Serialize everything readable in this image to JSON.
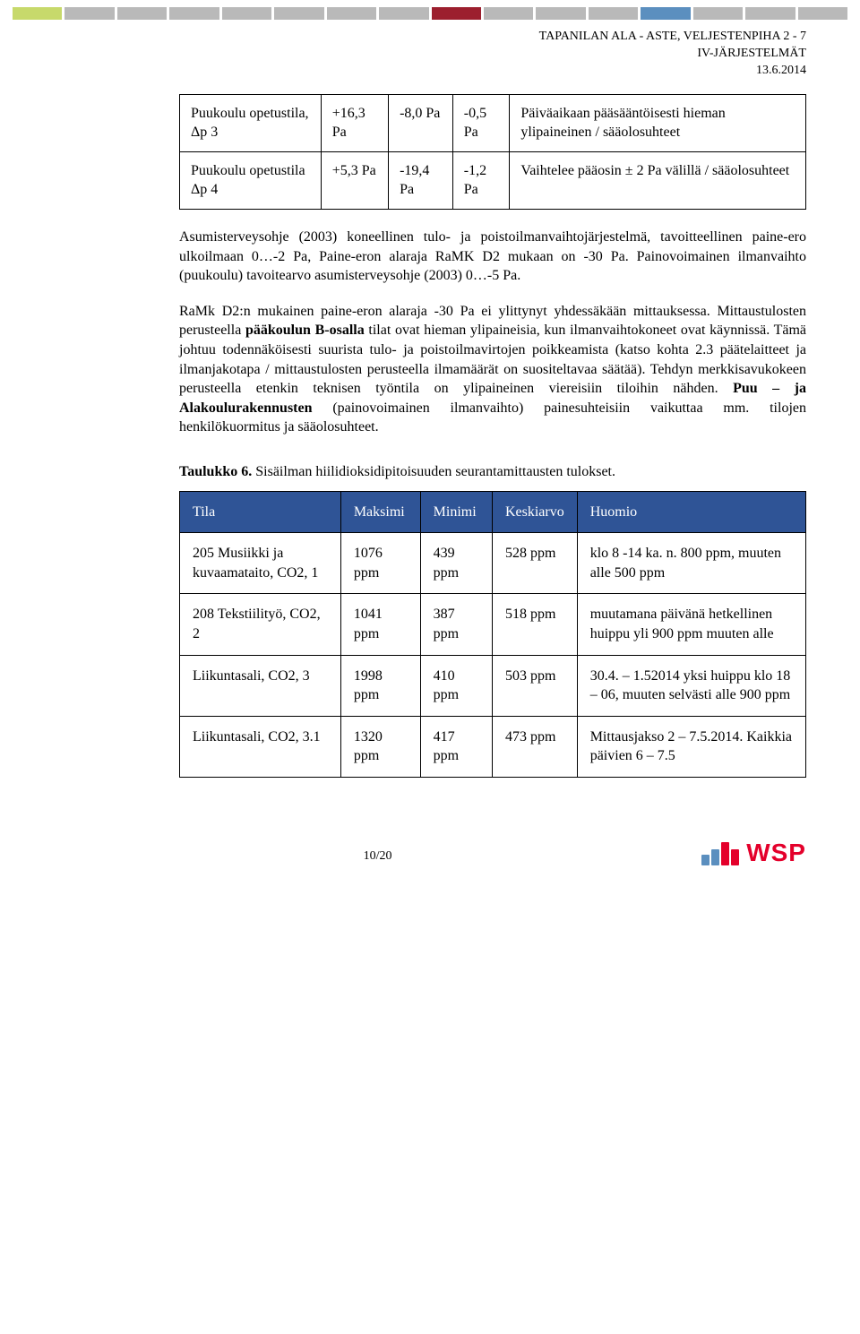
{
  "topbar_colors": [
    "#c7d96b",
    "#b9b9b9",
    "#b9b9b9",
    "#b9b9b9",
    "#b9b9b9",
    "#b9b9b9",
    "#b9b9b9",
    "#b9b9b9",
    "#9c1f2e",
    "#b9b9b9",
    "#b9b9b9",
    "#b9b9b9",
    "#5b8fbf",
    "#b9b9b9",
    "#b9b9b9",
    "#b9b9b9"
  ],
  "header": {
    "line1": "TAPANILAN ALA - ASTE, VELJESTENPIHA 2 - 7",
    "line2": "IV-JÄRJESTELMÄT",
    "line3": "13.6.2014"
  },
  "table1": {
    "r1": {
      "c1": "Puukoulu opetustila, Δp 3",
      "c2": "+16,3 Pa",
      "c3": "-8,0 Pa",
      "c4": "-0,5 Pa",
      "c5": "Päiväaikaan pääsääntöisesti hieman ylipaineinen / sääolosuhteet"
    },
    "r2": {
      "c1": "Puukoulu opetustila Δp 4",
      "c2": "+5,3 Pa",
      "c3": "-19,4 Pa",
      "c4": "-1,2 Pa",
      "c5": "Vaihtelee pääosin ± 2 Pa välillä / sääolosuhteet"
    }
  },
  "para1": "Asumisterveysohje (2003) koneellinen tulo- ja poistoilmanvaihtojärjestelmä, tavoitteellinen paine-ero ulkoilmaan 0…-2 Pa, Paine-eron alaraja RaMK D2 mukaan on -30 Pa. Painovoimainen ilmanvaihto (puukoulu) tavoitearvo asumisterveysohje (2003) 0…-5 Pa.",
  "para2": {
    "t1": "RaMk D2:n mukainen paine-eron alaraja -30 Pa ei ylittynyt yhdessäkään mittauksessa. Mittaustulosten perusteella ",
    "b1": "pääkoulun B-osalla",
    "t2": " tilat ovat hieman ylipaineisia, kun ilmanvaihtokoneet ovat käynnissä. Tämä johtuu todennäköisesti suurista tulo- ja poistoilmavirtojen poikkeamista (katso kohta 2.3 päätelaitteet ja ilmanjakotapa / mittaustulosten perusteella ilmamäärät on suositeltavaa säätää). Tehdyn merkkisavukokeen perusteella etenkin teknisen työntila on ylipaineinen viereisiin tiloihin nähden. ",
    "b2": "Puu – ja Alakoulurakennusten",
    "t3": " (painovoimainen ilmanvaihto) painesuhteisiin vaikuttaa mm. tilojen henkilökuormitus ja sääolosuhteet."
  },
  "caption": {
    "b": "Taulukko 6.",
    "t": " Sisäilman hiilidioksidipitoisuuden seurantamittausten tulokset."
  },
  "table2": {
    "head": {
      "c1": "Tila",
      "c2": "Maksimi",
      "c3": "Minimi",
      "c4": "Keskiarvo",
      "c5": "Huomio"
    },
    "r1": {
      "c1": "205 Musiikki ja kuvaamataito, CO2, 1",
      "c2": "1076 ppm",
      "c3": "439 ppm",
      "c4": "528 ppm",
      "c5": "klo 8 -14 ka. n. 800 ppm, muuten alle 500 ppm"
    },
    "r2": {
      "c1": "208 Tekstiilityö, CO2, 2",
      "c2": "1041 ppm",
      "c3": "387 ppm",
      "c4": "518 ppm",
      "c5": "muutamana päivänä hetkellinen huippu yli 900 ppm muuten alle"
    },
    "r3": {
      "c1": "Liikuntasali, CO2, 3",
      "c2": "1998 ppm",
      "c3": "410 ppm",
      "c4": "503 ppm",
      "c5": "30.4. – 1.52014 yksi huippu klo 18 – 06, muuten selvästi alle 900 ppm"
    },
    "r4": {
      "c1": "Liikuntasali, CO2, 3.1",
      "c2": "1320 ppm",
      "c3": "417 ppm",
      "c4": "473 ppm",
      "c5": "Mittausjakso 2 – 7.5.2014. Kaikkia päivien 6 – 7.5"
    }
  },
  "footer": {
    "page": "10/20",
    "logo_text": "WSP"
  },
  "logo_bars": [
    {
      "h": 12,
      "c": "#5b8fbf"
    },
    {
      "h": 18,
      "c": "#5b8fbf"
    },
    {
      "h": 26,
      "c": "#e4002b"
    },
    {
      "h": 18,
      "c": "#e4002b"
    }
  ]
}
